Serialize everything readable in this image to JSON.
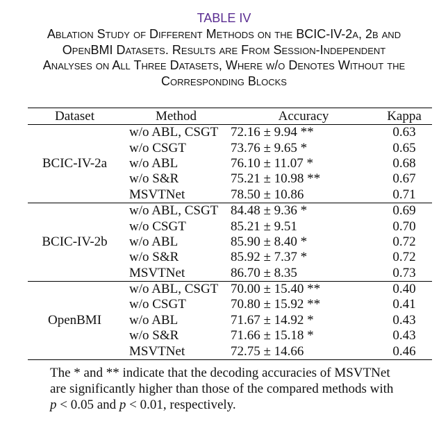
{
  "table_label": "TABLE IV",
  "caption_lines": [
    "Ablation Study of Different Methods on the BCIC-IV-2a, 2b and",
    "OpenBMI Datasets. Results are From Session-Independent",
    "Analyses on All Three Datasets, Where w/o Denotes Without the",
    "Corresponding Blocks"
  ],
  "colors": {
    "title": "#5a2d91",
    "text": "#111111"
  },
  "headers": [
    "Dataset",
    "Method",
    "Accuracy",
    "Kappa"
  ],
  "groups": [
    {
      "dataset": "BCIC-IV-2a",
      "rows": [
        {
          "method": "w/o ABL, CSGT",
          "accuracy": "72.16 ± 9.94 **",
          "kappa": "0.63"
        },
        {
          "method": "w/o CSGT",
          "accuracy": "73.76 ± 9.65 *",
          "kappa": "0.65"
        },
        {
          "method": "w/o ABL",
          "accuracy": "76.10 ± 11.07 *",
          "kappa": "0.68"
        },
        {
          "method": "w/o S&R",
          "accuracy": "75.21 ± 10.98 **",
          "kappa": "0.67"
        },
        {
          "method": "MSVTNet",
          "accuracy": "78.50 ± 10.86",
          "kappa": "0.71"
        }
      ]
    },
    {
      "dataset": "BCIC-IV-2b",
      "rows": [
        {
          "method": "w/o ABL, CSGT",
          "accuracy": "84.48 ± 9.36 *",
          "kappa": "0.69"
        },
        {
          "method": "w/o CSGT",
          "accuracy": "85.21 ± 9.51",
          "kappa": "0.70"
        },
        {
          "method": "w/o ABL",
          "accuracy": "85.90 ± 8.40 *",
          "kappa": "0.72"
        },
        {
          "method": "w/o S&R",
          "accuracy": "85.92 ± 7.37 *",
          "kappa": "0.72"
        },
        {
          "method": "MSVTNet",
          "accuracy": "86.70 ± 8.35",
          "kappa": "0.73"
        }
      ]
    },
    {
      "dataset": "OpenBMI",
      "rows": [
        {
          "method": "w/o ABL, CSGT",
          "accuracy": "70.00 ± 15.40 **",
          "kappa": "0.40"
        },
        {
          "method": "w/o CSGT",
          "accuracy": "70.80 ± 15.92 **",
          "kappa": "0.41"
        },
        {
          "method": "w/o ABL",
          "accuracy": "71.67 ± 14.92 *",
          "kappa": "0.43"
        },
        {
          "method": "w/o S&R",
          "accuracy": "71.66 ± 15.18 *",
          "kappa": "0.43"
        },
        {
          "method": "MSVTNet",
          "accuracy": "72.75 ± 14.66",
          "kappa": "0.46"
        }
      ]
    }
  ],
  "footnote_lines": [
    "The * and ** indicate that the decoding accuracies of MSVTNet",
    "are significantly higher than those of the compared methods with",
    "p < 0.05 and p < 0.01, respectively."
  ]
}
